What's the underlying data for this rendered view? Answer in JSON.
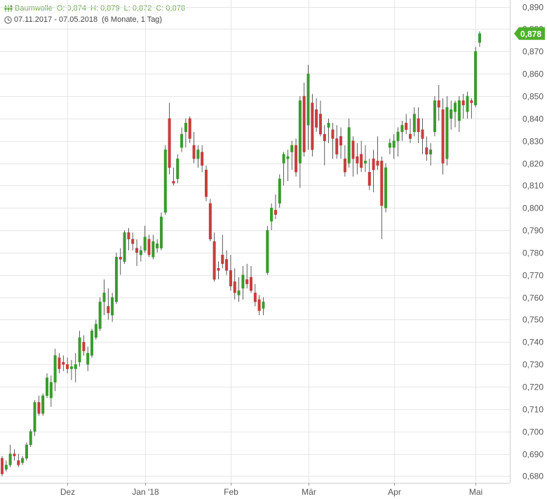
{
  "header": {
    "symbol": "Baumwolle",
    "open": "O: 0,874",
    "high": "H: 0,879",
    "low": "L: 0,872",
    "close": "C: 0,878",
    "range": "07.11.2017 - 07.05.2018",
    "period": "(6 Monate, 1 Tag)"
  },
  "colors": {
    "up": "#3a9a2e",
    "down": "#c83c3c",
    "grid": "#e6e6e6",
    "axis": "#555555",
    "last_bg": "#4caf2a",
    "header": "#6aa84f"
  },
  "chart_data": {
    "type": "candlestick",
    "ylim": [
      0.677,
      0.893
    ],
    "y_ticks": [
      "0,680",
      "0,690",
      "0,700",
      "0,710",
      "0,720",
      "0,730",
      "0,740",
      "0,750",
      "0,760",
      "0,770",
      "0,780",
      "0,790",
      "0,800",
      "0,810",
      "0,820",
      "0,830",
      "0,840",
      "0,850",
      "0,860",
      "0,870",
      "0,880",
      "0,890"
    ],
    "y_tick_values": [
      0.68,
      0.69,
      0.7,
      0.71,
      0.72,
      0.73,
      0.74,
      0.75,
      0.76,
      0.77,
      0.78,
      0.79,
      0.8,
      0.81,
      0.82,
      0.83,
      0.84,
      0.85,
      0.86,
      0.87,
      0.88,
      0.89
    ],
    "x_labels": [
      {
        "label": "Dez",
        "index": 16
      },
      {
        "label": "Jan '18",
        "index": 35
      },
      {
        "label": "Feb",
        "index": 56
      },
      {
        "label": "Mär",
        "index": 75
      },
      {
        "label": "Apr",
        "index": 96
      },
      {
        "label": "Mai",
        "index": 116
      }
    ],
    "last_value": "0,878",
    "ohlc": [
      [
        0.688,
        0.689,
        0.68,
        0.681
      ],
      [
        0.683,
        0.687,
        0.682,
        0.685
      ],
      [
        0.685,
        0.694,
        0.684,
        0.69
      ],
      [
        0.69,
        0.692,
        0.687,
        0.689
      ],
      [
        0.687,
        0.69,
        0.684,
        0.685
      ],
      [
        0.686,
        0.689,
        0.685,
        0.688
      ],
      [
        0.688,
        0.695,
        0.687,
        0.694
      ],
      [
        0.694,
        0.701,
        0.693,
        0.7
      ],
      [
        0.7,
        0.714,
        0.698,
        0.713
      ],
      [
        0.713,
        0.716,
        0.707,
        0.708
      ],
      [
        0.708,
        0.717,
        0.707,
        0.716
      ],
      [
        0.716,
        0.726,
        0.715,
        0.724
      ],
      [
        0.715,
        0.725,
        0.711,
        0.722
      ],
      [
        0.722,
        0.737,
        0.718,
        0.734
      ],
      [
        0.733,
        0.735,
        0.726,
        0.728
      ],
      [
        0.731,
        0.734,
        0.727,
        0.73
      ],
      [
        0.73,
        0.733,
        0.726,
        0.728
      ],
      [
        0.728,
        0.732,
        0.723,
        0.729
      ],
      [
        0.728,
        0.735,
        0.722,
        0.73
      ],
      [
        0.731,
        0.745,
        0.729,
        0.742
      ],
      [
        0.74,
        0.743,
        0.734,
        0.736
      ],
      [
        0.73,
        0.738,
        0.727,
        0.735
      ],
      [
        0.734,
        0.746,
        0.733,
        0.745
      ],
      [
        0.742,
        0.75,
        0.741,
        0.748
      ],
      [
        0.746,
        0.76,
        0.745,
        0.758
      ],
      [
        0.758,
        0.768,
        0.752,
        0.762
      ],
      [
        0.756,
        0.764,
        0.75,
        0.753
      ],
      [
        0.752,
        0.762,
        0.749,
        0.76
      ],
      [
        0.758,
        0.78,
        0.757,
        0.778
      ],
      [
        0.778,
        0.782,
        0.77,
        0.777
      ],
      [
        0.776,
        0.79,
        0.775,
        0.789
      ],
      [
        0.789,
        0.791,
        0.781,
        0.786
      ],
      [
        0.786,
        0.789,
        0.781,
        0.784
      ],
      [
        0.782,
        0.786,
        0.774,
        0.78
      ],
      [
        0.779,
        0.783,
        0.776,
        0.781
      ],
      [
        0.781,
        0.792,
        0.78,
        0.787
      ],
      [
        0.786,
        0.788,
        0.778,
        0.779
      ],
      [
        0.778,
        0.788,
        0.777,
        0.785
      ],
      [
        0.782,
        0.786,
        0.78,
        0.784
      ],
      [
        0.782,
        0.798,
        0.781,
        0.796
      ],
      [
        0.798,
        0.828,
        0.797,
        0.826
      ],
      [
        0.84,
        0.847,
        0.815,
        0.818
      ],
      [
        0.812,
        0.818,
        0.81,
        0.811
      ],
      [
        0.813,
        0.824,
        0.811,
        0.822
      ],
      [
        0.827,
        0.836,
        0.825,
        0.833
      ],
      [
        0.834,
        0.84,
        0.827,
        0.838
      ],
      [
        0.84,
        0.841,
        0.829,
        0.831
      ],
      [
        0.828,
        0.834,
        0.82,
        0.822
      ],
      [
        0.822,
        0.828,
        0.818,
        0.826
      ],
      [
        0.825,
        0.828,
        0.816,
        0.819
      ],
      [
        0.817,
        0.819,
        0.803,
        0.805
      ],
      [
        0.802,
        0.804,
        0.785,
        0.786
      ],
      [
        0.785,
        0.789,
        0.767,
        0.768
      ],
      [
        0.773,
        0.776,
        0.768,
        0.772
      ],
      [
        0.779,
        0.788,
        0.773,
        0.775
      ],
      [
        0.777,
        0.781,
        0.77,
        0.772
      ],
      [
        0.772,
        0.779,
        0.763,
        0.765
      ],
      [
        0.767,
        0.773,
        0.759,
        0.762
      ],
      [
        0.761,
        0.769,
        0.758,
        0.763
      ],
      [
        0.764,
        0.774,
        0.759,
        0.77
      ],
      [
        0.768,
        0.775,
        0.764,
        0.766
      ],
      [
        0.769,
        0.774,
        0.762,
        0.763
      ],
      [
        0.762,
        0.766,
        0.756,
        0.758
      ],
      [
        0.759,
        0.761,
        0.752,
        0.754
      ],
      [
        0.755,
        0.76,
        0.752,
        0.758
      ],
      [
        0.771,
        0.792,
        0.77,
        0.79
      ],
      [
        0.794,
        0.802,
        0.79,
        0.8
      ],
      [
        0.799,
        0.806,
        0.795,
        0.797
      ],
      [
        0.802,
        0.815,
        0.8,
        0.813
      ],
      [
        0.82,
        0.825,
        0.81,
        0.824
      ],
      [
        0.822,
        0.826,
        0.812,
        0.823
      ],
      [
        0.825,
        0.83,
        0.817,
        0.828
      ],
      [
        0.828,
        0.831,
        0.814,
        0.816
      ],
      [
        0.82,
        0.85,
        0.809,
        0.848
      ],
      [
        0.85,
        0.856,
        0.823,
        0.825
      ],
      [
        0.837,
        0.864,
        0.826,
        0.86
      ],
      [
        0.847,
        0.851,
        0.823,
        0.826
      ],
      [
        0.844,
        0.849,
        0.834,
        0.836
      ],
      [
        0.842,
        0.848,
        0.832,
        0.833
      ],
      [
        0.833,
        0.837,
        0.819,
        0.83
      ],
      [
        0.836,
        0.84,
        0.829,
        0.838
      ],
      [
        0.835,
        0.838,
        0.822,
        0.831
      ],
      [
        0.831,
        0.837,
        0.822,
        0.824
      ],
      [
        0.832,
        0.836,
        0.822,
        0.828
      ],
      [
        0.822,
        0.828,
        0.814,
        0.816
      ],
      [
        0.82,
        0.84,
        0.818,
        0.836
      ],
      [
        0.83,
        0.832,
        0.814,
        0.822
      ],
      [
        0.823,
        0.829,
        0.815,
        0.82
      ],
      [
        0.824,
        0.83,
        0.816,
        0.818
      ],
      [
        0.82,
        0.828,
        0.816,
        0.821
      ],
      [
        0.816,
        0.822,
        0.808,
        0.81
      ],
      [
        0.822,
        0.826,
        0.807,
        0.817
      ],
      [
        0.821,
        0.832,
        0.817,
        0.819
      ],
      [
        0.821,
        0.823,
        0.786,
        0.801
      ],
      [
        0.8,
        0.82,
        0.798,
        0.818
      ],
      [
        0.827,
        0.831,
        0.824,
        0.829
      ],
      [
        0.827,
        0.833,
        0.822,
        0.83
      ],
      [
        0.83,
        0.836,
        0.823,
        0.834
      ],
      [
        0.834,
        0.839,
        0.83,
        0.837
      ],
      [
        0.838,
        0.842,
        0.833,
        0.835
      ],
      [
        0.833,
        0.84,
        0.829,
        0.831
      ],
      [
        0.834,
        0.845,
        0.832,
        0.842
      ],
      [
        0.84,
        0.845,
        0.829,
        0.834
      ],
      [
        0.835,
        0.84,
        0.824,
        0.831
      ],
      [
        0.827,
        0.832,
        0.821,
        0.824
      ],
      [
        0.824,
        0.829,
        0.819,
        0.826
      ],
      [
        0.834,
        0.85,
        0.832,
        0.848
      ],
      [
        0.848,
        0.855,
        0.839,
        0.845
      ],
      [
        0.844,
        0.849,
        0.815,
        0.82
      ],
      [
        0.822,
        0.85,
        0.819,
        0.845
      ],
      [
        0.84,
        0.848,
        0.835,
        0.844
      ],
      [
        0.843,
        0.848,
        0.836,
        0.847
      ],
      [
        0.839,
        0.85,
        0.834,
        0.848
      ],
      [
        0.848,
        0.851,
        0.84,
        0.846
      ],
      [
        0.843,
        0.852,
        0.84,
        0.85
      ],
      [
        0.848,
        0.849,
        0.84,
        0.847
      ],
      [
        0.846,
        0.872,
        0.845,
        0.87
      ],
      [
        0.874,
        0.879,
        0.872,
        0.878
      ]
    ]
  }
}
